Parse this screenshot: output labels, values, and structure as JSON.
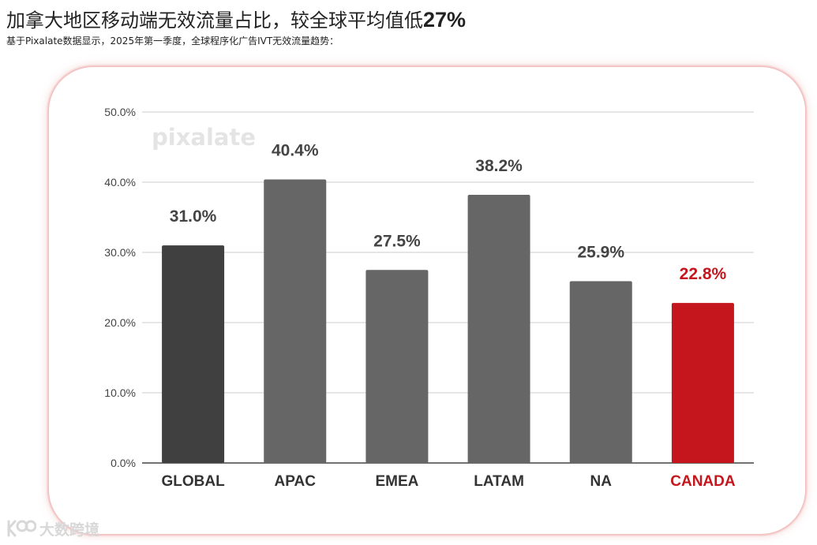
{
  "header": {
    "title": "加拿大地区移动端无效流量占比，较全球平均值低",
    "title_highlight": "27%",
    "subtitle": "基于Pixalate数据显示，2025年第一季度，全球程序化广告IVT无效流量趋势："
  },
  "watermark": {
    "text": "pixalate"
  },
  "brand": {
    "icon": "brand-logo-icon",
    "text": "大数跨境"
  },
  "colors": {
    "global": "#404040",
    "region": "#666666",
    "highlight": "#c4161c",
    "grid": "#cccccc",
    "axis": "#444444"
  },
  "chart_data": {
    "type": "bar",
    "categories": [
      "GLOBAL",
      "APAC",
      "EMEA",
      "LATAM",
      "NA",
      "CANADA"
    ],
    "values": [
      31.0,
      40.4,
      27.5,
      38.2,
      25.9,
      22.8
    ],
    "value_labels": [
      "31.0%",
      "40.4%",
      "27.5%",
      "38.2%",
      "25.9%",
      "22.8%"
    ],
    "highlight_category": "CANADA",
    "ylim": [
      0,
      50
    ],
    "yticks": [
      0,
      10,
      20,
      30,
      40,
      50
    ],
    "ytick_labels": [
      "0.0%",
      "10.0%",
      "20.0%",
      "30.0%",
      "40.0%",
      "50.0%"
    ],
    "grid": true,
    "legend": "none"
  }
}
